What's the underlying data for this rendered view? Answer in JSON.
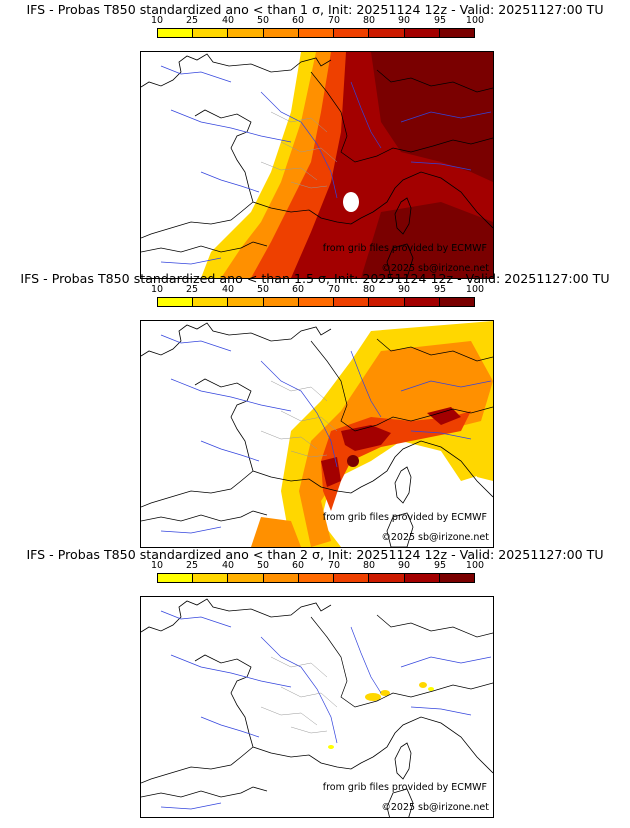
{
  "colorbar": {
    "ticks": [
      "10",
      "25",
      "40",
      "50",
      "60",
      "70",
      "80",
      "90",
      "95",
      "100"
    ],
    "colors": [
      "#ffff00",
      "#ffd700",
      "#ffb000",
      "#ff9000",
      "#ff6a00",
      "#ee4000",
      "#cc1a00",
      "#a30000",
      "#7a0000"
    ]
  },
  "panels": [
    {
      "title": "IFS - Probas T850  standardized ano < than 1 σ, Init: 20251124 12z - Valid: 20251127:00 TU",
      "credit_source": "from grib files provided by ECMWF",
      "credit_copyright": "©2025 sb@irizone.net",
      "coverage": "very high (most of map above 90%)"
    },
    {
      "title": "IFS - Probas T850  standardized ano < than 1.5 σ, Init: 20251124 12z - Valid: 20251127:00 TU",
      "credit_source": "from grib files provided by ECMWF",
      "credit_copyright": "©2025 sb@irizone.net",
      "coverage": "moderate (east and south-east)"
    },
    {
      "title": "IFS - Probas T850  standardized ano < than 2 σ, Init: 20251124 12z - Valid: 20251127:00 TU",
      "credit_source": "from grib files provided by ECMWF",
      "credit_copyright": "©2025 sb@irizone.net",
      "coverage": "low (small patches over Alps)"
    }
  ]
}
